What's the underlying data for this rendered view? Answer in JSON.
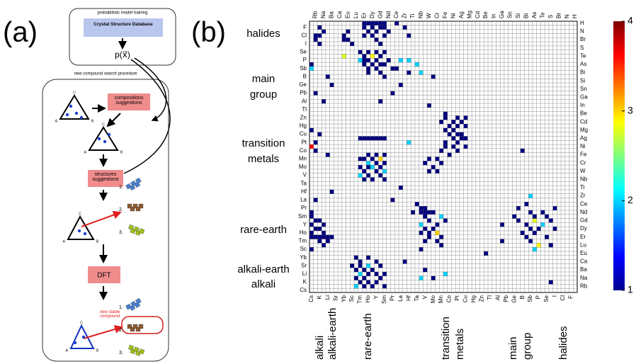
{
  "panel_a": {
    "label": "(a)",
    "training_title": "probabilistic model training",
    "database": "Crystal Structure Database",
    "model": "p(x⃗)",
    "search_title": "new compound search procedure",
    "compositions": "compositions suggestions",
    "structures": "structures suggestions",
    "dft": "DFT",
    "new_stable": "new stable compound",
    "steps": [
      "1.",
      "2.",
      "3."
    ],
    "vertices": [
      "A",
      "B",
      "C"
    ]
  },
  "chart_data": {
    "type": "heatmap",
    "label": "(b)",
    "rows": [
      "H",
      "F",
      "N",
      "Cl",
      "Br",
      "I",
      "S",
      "Se",
      "Te",
      "P",
      "As",
      "Sb",
      "Bi",
      "B",
      "Si",
      "Ge",
      "Sn",
      "Pb",
      "Ga",
      "Al",
      "In",
      "Tl",
      "Be",
      "Zn",
      "Cd",
      "Hg",
      "Mg",
      "Cu",
      "Ag",
      "Pt",
      "Ni",
      "Co",
      "Fe",
      "Mn",
      "Cr",
      "Mo",
      "W",
      "V",
      "Nb",
      "Ta",
      "Ti",
      "Hf",
      "Zr",
      "La",
      "Ce",
      "Pr",
      "Nd",
      "Sm",
      "Gd",
      "Y",
      "Dy",
      "Ho",
      "Er",
      "Tm",
      "Lu",
      "Sc",
      "Eu",
      "Yb",
      "Ca",
      "Sr",
      "Ba",
      "Li",
      "Na",
      "K",
      "Rb",
      "Cs"
    ],
    "cols": [
      "Cs",
      "Rb",
      "K",
      "Na",
      "Li",
      "Ba",
      "Sr",
      "Ca",
      "Yb",
      "Eu",
      "Sc",
      "Lu",
      "Tm",
      "Er",
      "Ho",
      "Dy",
      "Y",
      "Gd",
      "Sm",
      "Nd",
      "Pr",
      "Ce",
      "La",
      "Zr",
      "Hf",
      "Ti",
      "Ta",
      "Nb",
      "V",
      "W",
      "Mo",
      "Cr",
      "Mn",
      "Fe",
      "Co",
      "Ni",
      "Pt",
      "Ag",
      "Cu",
      "Mg",
      "Hg",
      "Cd",
      "Zn",
      "Be",
      "Tl",
      "In",
      "Al",
      "Ga",
      "Pb",
      "Sn",
      "Ge",
      "Si",
      "B",
      "Bi",
      "Sb",
      "As",
      "P",
      "Te",
      "Se",
      "S",
      "I",
      "Br",
      "Cl",
      "N",
      "F",
      "H"
    ],
    "row_groups": [
      [
        "halides"
      ],
      [
        "main",
        "group"
      ],
      [
        "transition",
        "metals"
      ],
      [
        "rare-earth"
      ],
      [
        "alkali-earth"
      ],
      [
        "alkali"
      ]
    ],
    "col_groups": [
      [
        "alkali"
      ],
      [
        "alkali-earth"
      ],
      [
        "rare-earth"
      ],
      [
        "transition",
        "metals"
      ],
      [
        "main",
        "group"
      ],
      [
        "halides"
      ]
    ],
    "clim": [
      1,
      4
    ],
    "cticks": [
      1,
      2,
      3,
      4
    ],
    "cells": [
      [
        0,
        13,
        1
      ],
      [
        0,
        14,
        1
      ],
      [
        0,
        15,
        1
      ],
      [
        0,
        16,
        1
      ],
      [
        0,
        17,
        1
      ],
      [
        0,
        18,
        1
      ],
      [
        0,
        21,
        1
      ],
      [
        1,
        2,
        1
      ],
      [
        1,
        13,
        1
      ],
      [
        1,
        15,
        1
      ],
      [
        1,
        17,
        1
      ],
      [
        1,
        18,
        1
      ],
      [
        1,
        23,
        1
      ],
      [
        2,
        3,
        1
      ],
      [
        2,
        9,
        1
      ],
      [
        2,
        14,
        1
      ],
      [
        2,
        16,
        1
      ],
      [
        2,
        19,
        1
      ],
      [
        3,
        1,
        1
      ],
      [
        3,
        2,
        1
      ],
      [
        3,
        8,
        1
      ],
      [
        3,
        13,
        1
      ],
      [
        3,
        15,
        1
      ],
      [
        3,
        18,
        1
      ],
      [
        3,
        24,
        1
      ],
      [
        4,
        1,
        1
      ],
      [
        4,
        8,
        1
      ],
      [
        4,
        9,
        1
      ],
      [
        4,
        16,
        1
      ],
      [
        5,
        2,
        1
      ],
      [
        5,
        10,
        1
      ],
      [
        5,
        17,
        1
      ],
      [
        7,
        12,
        1
      ],
      [
        7,
        14,
        1
      ],
      [
        7,
        16,
        1
      ],
      [
        7,
        18,
        1
      ],
      [
        8,
        8,
        2.8
      ],
      [
        8,
        13,
        1
      ],
      [
        8,
        15,
        2.9
      ],
      [
        8,
        17,
        1
      ],
      [
        9,
        12,
        2
      ],
      [
        9,
        13,
        1
      ],
      [
        9,
        14,
        1
      ],
      [
        9,
        16,
        1
      ],
      [
        9,
        19,
        1
      ],
      [
        9,
        22,
        2
      ],
      [
        9,
        24,
        2
      ],
      [
        10,
        0,
        1
      ],
      [
        10,
        13,
        1
      ],
      [
        10,
        15,
        1
      ],
      [
        10,
        17,
        1
      ],
      [
        10,
        18,
        1
      ],
      [
        10,
        26,
        2
      ],
      [
        11,
        0,
        2
      ],
      [
        11,
        14,
        1
      ],
      [
        11,
        16,
        1
      ],
      [
        11,
        20,
        1
      ],
      [
        11,
        21,
        1
      ],
      [
        12,
        14,
        1
      ],
      [
        12,
        17,
        1
      ],
      [
        12,
        24,
        1
      ],
      [
        12,
        27,
        2
      ],
      [
        13,
        4,
        1
      ],
      [
        13,
        18,
        1
      ],
      [
        13,
        30,
        1
      ],
      [
        15,
        5,
        1
      ],
      [
        15,
        22,
        1
      ],
      [
        17,
        1,
        1
      ],
      [
        17,
        20,
        1
      ],
      [
        19,
        3,
        1
      ],
      [
        19,
        17,
        1
      ],
      [
        20,
        29,
        1
      ],
      [
        22,
        33,
        1
      ],
      [
        23,
        33,
        1
      ],
      [
        23,
        36,
        1
      ],
      [
        23,
        38,
        1
      ],
      [
        24,
        32,
        1
      ],
      [
        24,
        35,
        1
      ],
      [
        24,
        37,
        1
      ],
      [
        25,
        34,
        1
      ],
      [
        25,
        36,
        1
      ],
      [
        25,
        38,
        1
      ],
      [
        26,
        0,
        1
      ],
      [
        26,
        33,
        1
      ],
      [
        26,
        35,
        1
      ],
      [
        27,
        2,
        1
      ],
      [
        27,
        34,
        1
      ],
      [
        27,
        36,
        1
      ],
      [
        27,
        37,
        1
      ],
      [
        28,
        12,
        1
      ],
      [
        28,
        13,
        1
      ],
      [
        28,
        14,
        1
      ],
      [
        28,
        15,
        1
      ],
      [
        28,
        16,
        1
      ],
      [
        28,
        17,
        1
      ],
      [
        28,
        18,
        1
      ],
      [
        28,
        35,
        1
      ],
      [
        28,
        37,
        1
      ],
      [
        28,
        38,
        1
      ],
      [
        29,
        1,
        1
      ],
      [
        29,
        24,
        2
      ],
      [
        29,
        33,
        1
      ],
      [
        29,
        36,
        1
      ],
      [
        30,
        0,
        3.6
      ],
      [
        30,
        33,
        1
      ],
      [
        30,
        35,
        1
      ],
      [
        30,
        38,
        1
      ],
      [
        31,
        1,
        1
      ],
      [
        31,
        32,
        1
      ],
      [
        31,
        36,
        1
      ],
      [
        31,
        52,
        1
      ],
      [
        32,
        4,
        1
      ],
      [
        32,
        14,
        1
      ],
      [
        32,
        16,
        1
      ],
      [
        32,
        18,
        1
      ],
      [
        32,
        34,
        1
      ],
      [
        33,
        12,
        1
      ],
      [
        33,
        13,
        1
      ],
      [
        33,
        15,
        1
      ],
      [
        33,
        17,
        3
      ],
      [
        33,
        29,
        1
      ],
      [
        33,
        31,
        1
      ],
      [
        34,
        14,
        2
      ],
      [
        34,
        16,
        1
      ],
      [
        34,
        18,
        1
      ],
      [
        34,
        28,
        1
      ],
      [
        34,
        32,
        1
      ],
      [
        35,
        12,
        1
      ],
      [
        35,
        14,
        1
      ],
      [
        35,
        15,
        2
      ],
      [
        35,
        17,
        1
      ],
      [
        35,
        30,
        1
      ],
      [
        36,
        13,
        1
      ],
      [
        36,
        16,
        1
      ],
      [
        36,
        18,
        2
      ],
      [
        36,
        29,
        1
      ],
      [
        36,
        31,
        1
      ],
      [
        37,
        12,
        2
      ],
      [
        37,
        14,
        1
      ],
      [
        37,
        17,
        1
      ],
      [
        38,
        13,
        1
      ],
      [
        38,
        15,
        1
      ],
      [
        38,
        18,
        1
      ],
      [
        40,
        22,
        1
      ],
      [
        41,
        5,
        1
      ],
      [
        42,
        54,
        2
      ],
      [
        43,
        1,
        1
      ],
      [
        43,
        20,
        1
      ],
      [
        44,
        26,
        1
      ],
      [
        44,
        53,
        1
      ],
      [
        45,
        27,
        1
      ],
      [
        45,
        28,
        1
      ],
      [
        45,
        51,
        1
      ],
      [
        45,
        60,
        1
      ],
      [
        46,
        0,
        1
      ],
      [
        46,
        25,
        1
      ],
      [
        46,
        27,
        1
      ],
      [
        46,
        28,
        1
      ],
      [
        46,
        29,
        1
      ],
      [
        46,
        30,
        1
      ],
      [
        46,
        54,
        1
      ],
      [
        46,
        57,
        1
      ],
      [
        47,
        0,
        1
      ],
      [
        47,
        28,
        1
      ],
      [
        47,
        32,
        2
      ],
      [
        47,
        50,
        1
      ],
      [
        47,
        55,
        1
      ],
      [
        47,
        58,
        1
      ],
      [
        48,
        1,
        1
      ],
      [
        48,
        2,
        1
      ],
      [
        48,
        29,
        1
      ],
      [
        48,
        33,
        1
      ],
      [
        48,
        51,
        1
      ],
      [
        48,
        55,
        2.8
      ],
      [
        48,
        59,
        1
      ],
      [
        49,
        0,
        1
      ],
      [
        49,
        3,
        1
      ],
      [
        49,
        27,
        2
      ],
      [
        49,
        31,
        1
      ],
      [
        49,
        47,
        1
      ],
      [
        49,
        53,
        1
      ],
      [
        49,
        57,
        2
      ],
      [
        50,
        1,
        1
      ],
      [
        50,
        2,
        1
      ],
      [
        50,
        28,
        1
      ],
      [
        50,
        30,
        1
      ],
      [
        50,
        54,
        1
      ],
      [
        50,
        56,
        1
      ],
      [
        50,
        60,
        1
      ],
      [
        51,
        0,
        1
      ],
      [
        51,
        3,
        1
      ],
      [
        51,
        27,
        1
      ],
      [
        51,
        29,
        1
      ],
      [
        51,
        31,
        3
      ],
      [
        51,
        52,
        1
      ],
      [
        51,
        55,
        1
      ],
      [
        52,
        0,
        1
      ],
      [
        52,
        1,
        1
      ],
      [
        52,
        2,
        1
      ],
      [
        52,
        3,
        1
      ],
      [
        52,
        4,
        1
      ],
      [
        52,
        5,
        1
      ],
      [
        52,
        29,
        1
      ],
      [
        52,
        32,
        1
      ],
      [
        52,
        53,
        1
      ],
      [
        52,
        58,
        1
      ],
      [
        53,
        2,
        1
      ],
      [
        53,
        4,
        1
      ],
      [
        53,
        28,
        1
      ],
      [
        53,
        31,
        1
      ],
      [
        53,
        47,
        1
      ],
      [
        53,
        54,
        1
      ],
      [
        54,
        3,
        1
      ],
      [
        54,
        32,
        1
      ],
      [
        54,
        56,
        2.9
      ],
      [
        54,
        59,
        1
      ],
      [
        55,
        0,
        1
      ],
      [
        55,
        27,
        1
      ],
      [
        55,
        55,
        2
      ],
      [
        56,
        43,
        1
      ],
      [
        57,
        11,
        1
      ],
      [
        57,
        14,
        1
      ],
      [
        58,
        12,
        1
      ],
      [
        58,
        16,
        1
      ],
      [
        58,
        23,
        1
      ],
      [
        59,
        10,
        1
      ],
      [
        59,
        12,
        1
      ],
      [
        59,
        14,
        2
      ],
      [
        59,
        17,
        1
      ],
      [
        60,
        11,
        1
      ],
      [
        60,
        13,
        1
      ],
      [
        60,
        15,
        1
      ],
      [
        60,
        28,
        1
      ],
      [
        61,
        12,
        2
      ],
      [
        61,
        14,
        1
      ],
      [
        61,
        16,
        1
      ],
      [
        61,
        18,
        1
      ],
      [
        61,
        33,
        2
      ],
      [
        62,
        11,
        1
      ],
      [
        62,
        13,
        1
      ],
      [
        62,
        17,
        1
      ],
      [
        62,
        27,
        2
      ],
      [
        62,
        30,
        1
      ],
      [
        63,
        12,
        1
      ],
      [
        63,
        14,
        1
      ],
      [
        63,
        16,
        1
      ],
      [
        63,
        59,
        1
      ],
      [
        64,
        11,
        2
      ],
      [
        64,
        13,
        1
      ],
      [
        64,
        15,
        1
      ],
      [
        64,
        18,
        1
      ]
    ]
  }
}
